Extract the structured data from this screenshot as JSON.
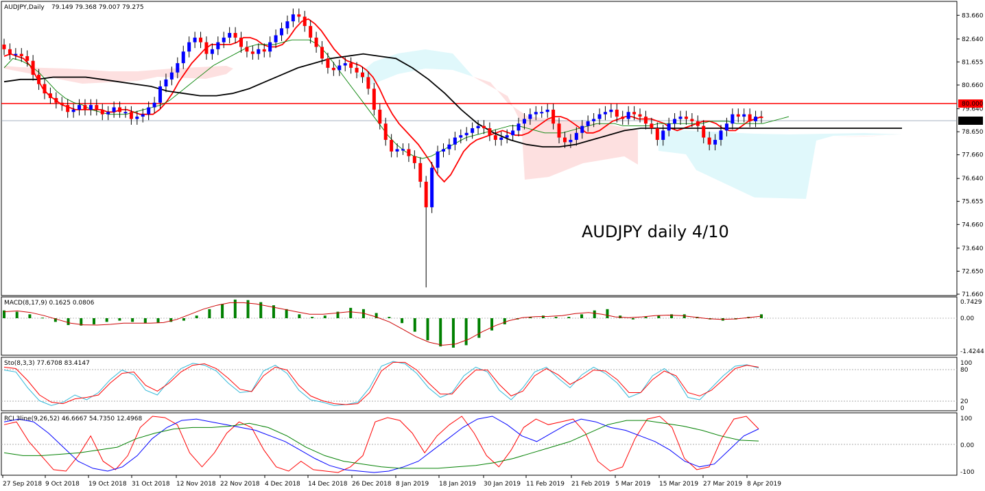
{
  "header": {
    "symbol": "AUDJPY,Daily",
    "ohlc": "79.149 79.368 79.007 79.275"
  },
  "annotation": "AUDJPY daily 4/10",
  "price_axis": {
    "ticks": [
      "83.660",
      "82.640",
      "81.655",
      "80.660",
      "79.640",
      "78.650",
      "77.660",
      "76.640",
      "75.655",
      "74.660",
      "73.640",
      "72.650",
      "71.660"
    ],
    "resistance_label": "80.000",
    "current_label": "79.275"
  },
  "macd": {
    "label": "MACD(8,17,9) 0.1625 0.0806",
    "ticks": [
      "0.7429",
      "0.00",
      "-1.4244"
    ]
  },
  "stoch": {
    "label": "Sto(8,3,3) 77.6708 83.4147",
    "ticks": [
      "100",
      "80",
      "20",
      "0"
    ]
  },
  "rci": {
    "label": "RCI 3line(9,26,52) 46.6667 54.7350 12.4968",
    "ticks": [
      "100",
      "0.00",
      "-100"
    ]
  },
  "date_labels": [
    "27 Sep 2018",
    "9 Oct 2018",
    "19 Oct 2018",
    "31 Oct 2018",
    "12 Nov 2018",
    "22 Nov 2018",
    "4 Dec 2018",
    "14 Dec 2018",
    "26 Dec 2018",
    "8 Jan 2019",
    "18 Jan 2019",
    "30 Jan 2019",
    "11 Feb 2019",
    "21 Feb 2019",
    "5 Mar 2019",
    "15 Mar 2019",
    "27 Mar 2019",
    "8 Apr 2019"
  ],
  "colors": {
    "up_candle": "#0000ff",
    "down_candle": "#ff0000",
    "fast_ma": "#ff0000",
    "mid_ma": "#008000",
    "slow_ma": "#000000",
    "cloud_bull": "#e0f8fb",
    "cloud_bear": "#fde0e0",
    "macd_hist": "#008000",
    "macd_signal": "#cc0000",
    "stoch_main": "#30b8d8",
    "stoch_signal": "#ff0000",
    "rci_short": "#ff0000",
    "rci_mid": "#0000ff",
    "rci_long": "#008000",
    "resistance": "#ff0000"
  },
  "chart_data": [
    {
      "type": "candlestick",
      "title": "AUDJPY,Daily",
      "ylim": [
        71.66,
        84.2
      ],
      "x_start": "2018-09-27",
      "x_end": "2019-04-10",
      "close": [
        82.2,
        82.0,
        82.0,
        81.9,
        81.7,
        81.1,
        80.7,
        80.3,
        80.1,
        79.9,
        79.8,
        79.5,
        79.6,
        79.8,
        79.6,
        79.8,
        79.6,
        79.4,
        79.5,
        79.7,
        79.5,
        79.5,
        79.2,
        79.3,
        79.4,
        79.7,
        79.9,
        80.6,
        80.9,
        81.2,
        81.6,
        82.1,
        82.5,
        82.7,
        82.5,
        82.0,
        82.2,
        82.5,
        82.7,
        82.9,
        82.7,
        82.3,
        82.1,
        82.0,
        82.2,
        82.1,
        82.5,
        82.8,
        83.1,
        83.4,
        83.7,
        83.6,
        83.2,
        82.7,
        82.3,
        81.8,
        81.4,
        81.3,
        81.5,
        81.6,
        81.4,
        81.2,
        81.0,
        80.5,
        79.6,
        79.0,
        78.3,
        77.8,
        77.9,
        77.9,
        77.6,
        77.3,
        76.5,
        75.4,
        77.1,
        77.8,
        77.9,
        78.1,
        78.4,
        78.5,
        78.6,
        78.8,
        78.9,
        78.8,
        78.5,
        78.3,
        78.4,
        78.5,
        78.7,
        79.0,
        79.2,
        79.4,
        79.5,
        79.5,
        79.6,
        79.0,
        78.4,
        78.2,
        78.3,
        78.6,
        78.9,
        79.1,
        79.2,
        79.4,
        79.5,
        79.6,
        79.3,
        79.2,
        79.5,
        79.4,
        79.3,
        79.0,
        78.8,
        78.3,
        78.7,
        79.0,
        79.2,
        79.3,
        79.2,
        79.1,
        78.9,
        78.4,
        78.1,
        78.3,
        78.7,
        79.0,
        79.4,
        79.3,
        79.4,
        79.1,
        79.3,
        79.275
      ],
      "moving_averages": [
        {
          "name": "fast",
          "values": [
            81.9,
            82.0,
            81.9,
            81.8,
            81.5,
            81.0,
            80.5,
            80.2,
            80.0,
            79.8,
            79.7,
            79.6,
            79.6,
            79.6,
            79.6,
            79.6,
            79.5,
            79.5,
            79.6,
            79.6,
            79.5,
            79.4,
            79.4,
            79.4,
            79.6,
            79.9,
            80.3,
            80.8,
            81.2,
            81.6,
            81.9,
            82.2,
            82.4,
            82.4,
            82.4,
            82.4,
            82.5,
            82.7,
            82.7,
            82.6,
            82.4,
            82.3,
            82.3,
            82.4,
            82.7,
            83.1,
            83.4,
            83.5,
            83.3,
            83.0,
            82.6,
            82.2,
            81.9,
            81.7,
            81.6,
            81.5,
            81.3,
            81.0,
            80.5,
            79.9,
            79.4,
            79.0,
            78.7,
            78.4,
            78.1,
            77.7,
            77.3,
            76.8,
            76.5,
            76.8,
            77.3,
            77.8,
            78.1,
            78.3,
            78.4,
            78.5,
            78.6,
            78.7,
            78.6,
            78.5,
            78.5,
            78.6,
            78.8,
            79.0,
            79.2,
            79.3,
            79.3,
            79.2,
            79.0,
            78.8,
            78.6,
            78.6,
            78.7,
            78.9,
            79.1,
            79.2,
            79.3,
            79.3,
            79.2,
            79.2,
            79.2,
            79.1,
            79.0,
            78.8,
            78.7,
            78.8,
            78.9,
            79.0,
            79.1,
            79.1,
            79.0,
            78.8,
            78.7,
            78.7,
            78.9,
            79.1,
            79.2,
            79.3
          ]
        },
        {
          "name": "mid",
          "values": [
            81.4,
            81.8,
            81.7,
            81.5,
            81.2,
            80.8,
            80.4,
            80.1,
            79.9,
            79.8,
            79.6,
            79.5,
            79.4,
            79.4,
            79.4,
            79.5,
            79.6,
            79.7,
            79.8,
            80.0,
            80.3,
            80.6,
            80.9,
            81.2,
            81.5,
            81.7,
            81.9,
            82.1,
            82.3,
            82.4,
            82.4,
            82.4,
            82.5,
            82.6,
            82.6,
            82.6,
            82.4,
            82.0,
            81.5,
            81.0,
            80.5,
            80.0,
            79.5,
            79.0,
            78.5,
            78.1,
            77.8,
            77.6,
            77.5,
            77.6,
            77.8,
            78.0,
            78.2,
            78.4,
            78.5,
            78.6,
            78.7,
            78.8,
            78.9,
            78.9,
            78.8,
            78.7,
            78.6,
            78.6,
            78.6,
            78.7,
            78.8,
            78.9,
            79.0,
            79.0,
            79.0,
            78.9,
            78.9,
            78.9,
            78.9,
            79.0,
            79.0,
            79.0,
            79.0,
            79.0,
            79.0,
            79.1,
            79.1,
            79.1,
            79.0,
            79.0,
            79.0,
            79.0,
            79.1,
            79.2,
            79.3
          ]
        },
        {
          "name": "slow",
          "values": [
            80.8,
            80.9,
            80.9,
            81.0,
            81.0,
            81.0,
            80.9,
            80.8,
            80.7,
            80.6,
            80.4,
            80.3,
            80.2,
            80.2,
            80.3,
            80.5,
            80.8,
            81.1,
            81.4,
            81.6,
            81.8,
            81.9,
            82.0,
            81.9,
            81.8,
            81.4,
            80.9,
            80.3,
            79.6,
            79.0,
            78.6,
            78.3,
            78.1,
            78.0,
            78.0,
            78.1,
            78.3,
            78.5,
            78.7,
            78.8,
            78.8,
            78.8,
            78.8,
            78.8,
            78.8,
            78.8,
            78.8,
            78.8,
            78.8,
            78.8,
            78.8,
            78.8,
            78.8,
            78.8,
            78.8,
            78.8
          ]
        }
      ]
    },
    {
      "type": "bar",
      "title": "MACD(8,17,9) 0.1625 0.0806",
      "ylim": [
        -1.4244,
        0.7429
      ],
      "histogram": [
        0.3,
        0.25,
        0.15,
        0.02,
        -0.15,
        -0.28,
        -0.3,
        -0.25,
        -0.15,
        -0.1,
        -0.15,
        -0.2,
        -0.18,
        -0.15,
        -0.1,
        0.1,
        0.35,
        0.55,
        0.72,
        0.7,
        0.62,
        0.5,
        0.35,
        0.15,
        0.05,
        0.1,
        0.25,
        0.4,
        0.35,
        0.2,
        0.05,
        -0.2,
        -0.55,
        -0.9,
        -1.15,
        -1.2,
        -1.1,
        -0.8,
        -0.5,
        -0.25,
        -0.05,
        0.05,
        0.1,
        0.05,
        0.05,
        0.15,
        0.3,
        0.35,
        0.1,
        -0.05,
        0.05,
        0.1,
        0.15,
        0.15,
        0.05,
        -0.05,
        -0.1,
        -0.05,
        0.05,
        0.15
      ],
      "signal": [
        0.25,
        0.28,
        0.22,
        0.1,
        -0.05,
        -0.2,
        -0.27,
        -0.28,
        -0.25,
        -0.2,
        -0.2,
        -0.2,
        -0.18,
        -0.05,
        0.15,
        0.35,
        0.5,
        0.6,
        0.6,
        0.55,
        0.45,
        0.35,
        0.25,
        0.15,
        0.15,
        0.2,
        0.25,
        0.2,
        0.05,
        -0.15,
        -0.45,
        -0.75,
        -0.98,
        -1.1,
        -1.05,
        -0.85,
        -0.55,
        -0.3,
        -0.1,
        0.02,
        0.06,
        0.07,
        0.1,
        0.18,
        0.22,
        0.15,
        0.05,
        0.02,
        0.05,
        0.1,
        0.12,
        0.1,
        0.04,
        -0.02,
        -0.05,
        -0.03,
        0.02,
        0.08
      ]
    },
    {
      "type": "line",
      "title": "Sto(8,3,3) 77.6708 83.4147",
      "ylim": [
        0,
        100
      ],
      "series": [
        {
          "name": "main",
          "values": [
            82,
            78,
            45,
            18,
            8,
            15,
            30,
            20,
            35,
            62,
            82,
            72,
            40,
            30,
            60,
            85,
            96,
            92,
            80,
            55,
            35,
            38,
            80,
            92,
            75,
            40,
            20,
            15,
            8,
            10,
            15,
            45,
            90,
            100,
            95,
            75,
            45,
            25,
            35,
            70,
            88,
            78,
            40,
            20,
            45,
            78,
            88,
            65,
            45,
            72,
            88,
            75,
            55,
            25,
            35,
            70,
            85,
            65,
            25,
            20,
            45,
            70,
            90,
            93,
            86
          ]
        },
        {
          "name": "signal",
          "values": [
            88,
            85,
            60,
            30,
            15,
            12,
            22,
            25,
            30,
            55,
            75,
            78,
            50,
            38,
            55,
            78,
            92,
            95,
            85,
            65,
            42,
            37,
            70,
            88,
            82,
            50,
            28,
            18,
            12,
            10,
            12,
            35,
            80,
            98,
            98,
            82,
            55,
            32,
            32,
            60,
            82,
            82,
            52,
            28,
            38,
            70,
            85,
            72,
            52,
            65,
            82,
            80,
            62,
            35,
            35,
            62,
            80,
            70,
            35,
            28,
            40,
            62,
            85,
            92,
            88
          ]
        }
      ]
    },
    {
      "type": "line",
      "title": "RCI 3line(9,26,52) 46.6667 54.7350 12.4968",
      "ylim": [
        -100,
        100
      ],
      "series": [
        {
          "name": "rci9",
          "values": [
            70,
            80,
            10,
            -40,
            -90,
            -95,
            -40,
            30,
            -60,
            -90,
            -40,
            60,
            100,
            95,
            70,
            -30,
            -80,
            -30,
            40,
            80,
            60,
            -20,
            -80,
            -95,
            -60,
            -90,
            -95,
            -100,
            -80,
            -40,
            80,
            95,
            85,
            40,
            -30,
            30,
            70,
            100,
            40,
            -40,
            -80,
            -20,
            60,
            90,
            70,
            80,
            90,
            40,
            -60,
            -95,
            -80,
            20,
            90,
            100,
            60,
            -50,
            -90,
            -80,
            20,
            90,
            100,
            55
          ]
        },
        {
          "name": "rci26",
          "values": [
            80,
            90,
            80,
            40,
            -10,
            -60,
            -85,
            -95,
            -80,
            -40,
            20,
            60,
            85,
            90,
            80,
            70,
            60,
            50,
            30,
            10,
            -20,
            -50,
            -75,
            -90,
            -95,
            -100,
            -95,
            -80,
            -60,
            -20,
            20,
            60,
            90,
            100,
            70,
            30,
            10,
            40,
            70,
            90,
            80,
            60,
            50,
            30,
            10,
            -20,
            -60,
            -80,
            -70,
            -20,
            30,
            55
          ]
        },
        {
          "name": "rci52",
          "values": [
            -30,
            -40,
            -40,
            -35,
            -30,
            -20,
            -10,
            20,
            40,
            55,
            60,
            60,
            65,
            75,
            60,
            30,
            -10,
            -40,
            -60,
            -70,
            -80,
            -85,
            -85,
            -85,
            -80,
            -75,
            -65,
            -50,
            -30,
            -10,
            10,
            40,
            70,
            85,
            85,
            75,
            65,
            50,
            30,
            15,
            12
          ]
        }
      ]
    }
  ]
}
